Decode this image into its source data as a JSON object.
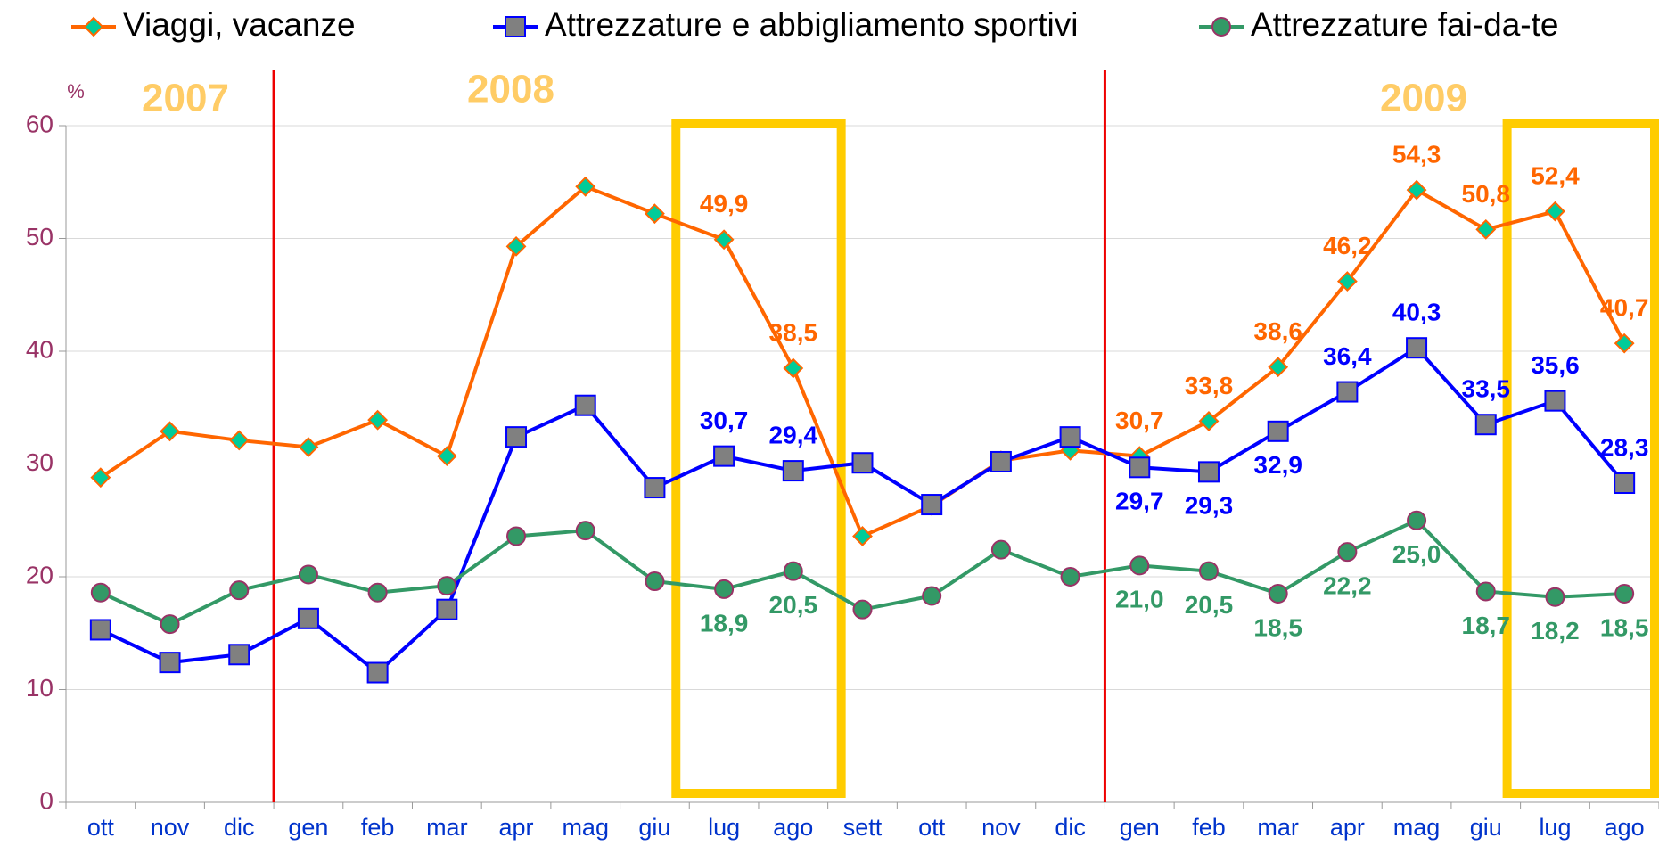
{
  "chart_data": {
    "type": "line",
    "unit_label": "%",
    "annotations": [
      "2007",
      "2008",
      "2009"
    ],
    "categories": [
      "ott",
      "nov",
      "dic",
      "gen",
      "feb",
      "mar",
      "apr",
      "mag",
      "giu",
      "lug",
      "ago",
      "sett",
      "ott",
      "nov",
      "dic",
      "gen",
      "feb",
      "mar",
      "apr",
      "mag",
      "giu",
      "lug",
      "ago"
    ],
    "series": [
      {
        "name": "Viaggi, vacanze",
        "color": "#ff6600",
        "marker_color": "#00cc99",
        "values": [
          28.8,
          32.9,
          32.1,
          31.5,
          33.9,
          30.7,
          49.3,
          54.6,
          52.2,
          49.9,
          38.5,
          23.6,
          26.3,
          30.3,
          31.2,
          30.7,
          33.8,
          38.6,
          46.2,
          54.3,
          50.8,
          52.4,
          40.7
        ],
        "value_labels": [
          null,
          null,
          null,
          null,
          null,
          null,
          null,
          null,
          null,
          "49,9",
          "38,5",
          null,
          null,
          null,
          null,
          "30,7",
          "33,8",
          "38,6",
          "46,2",
          "54,3",
          "50,8",
          "52,4",
          "40,7"
        ]
      },
      {
        "name": "Attrezzature e abbigliamento sportivi",
        "color": "#0000ff",
        "marker_color": "#808080",
        "values": [
          15.3,
          12.4,
          13.1,
          16.3,
          11.5,
          17.1,
          32.4,
          35.2,
          27.9,
          30.7,
          29.4,
          30.1,
          26.4,
          30.2,
          32.4,
          29.7,
          29.3,
          32.9,
          36.4,
          40.3,
          33.5,
          35.6,
          28.3
        ],
        "value_labels": [
          null,
          null,
          null,
          null,
          null,
          null,
          null,
          null,
          null,
          "30,7",
          "29,4",
          null,
          null,
          null,
          null,
          "29,7",
          "29,3",
          "32,9",
          "36,4",
          "40,3",
          "33,5",
          "35,6",
          "28,3"
        ]
      },
      {
        "name": "Attrezzature fai-da-te",
        "color": "#339966",
        "marker_color": "#339966",
        "values": [
          18.6,
          15.8,
          18.8,
          20.2,
          18.6,
          19.2,
          23.6,
          24.1,
          19.6,
          18.9,
          20.5,
          17.1,
          18.3,
          22.4,
          20.0,
          21.0,
          20.5,
          18.5,
          22.2,
          25.0,
          18.7,
          18.2,
          18.5
        ],
        "value_labels": [
          null,
          null,
          null,
          null,
          null,
          null,
          null,
          null,
          null,
          "18,9",
          "20,5",
          null,
          null,
          null,
          null,
          "21,0",
          "20,5",
          "18,5",
          "22,2",
          "25,0",
          "18,7",
          "18,2",
          "18,5"
        ]
      }
    ],
    "ylim": [
      0,
      60
    ],
    "yticks": [
      0,
      10,
      20,
      30,
      40,
      50,
      60
    ],
    "grid": true
  }
}
